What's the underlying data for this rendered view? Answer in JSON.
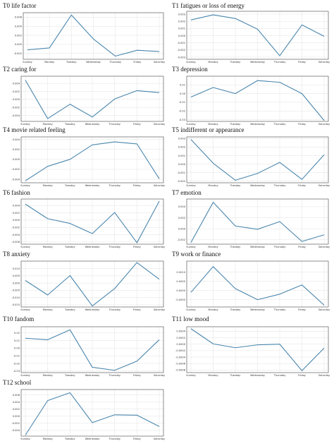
{
  "figure": {
    "line_color": "#4a86ad",
    "grid": true
  },
  "chart_data": [
    {
      "type": "line",
      "title": "T0 life factor",
      "categories": [
        "Sunday",
        "Monday",
        "Tuesday",
        "Wednesday",
        "Thursday",
        "Friday",
        "Saturday"
      ],
      "yticks": [
        "0.006",
        "0.004",
        "0.002",
        "0.000",
        "-0.002"
      ],
      "ylim": [
        -0.0033,
        0.007
      ],
      "series": [
        {
          "values": [
            -0.0012,
            -0.0008,
            0.0065,
            0.0012,
            -0.0026,
            -0.0013,
            -0.0016
          ]
        }
      ]
    },
    {
      "type": "line",
      "title": "T1 fatigues or loss of energy",
      "categories": [
        "Sunday",
        "Monday",
        "Tuesday",
        "Wednesday",
        "Thursday",
        "Friday",
        "Saturday"
      ],
      "yticks": [
        "0.003",
        "0.002",
        "0.001",
        "0.000",
        "-0.001",
        "-0.002",
        "-0.003"
      ],
      "ylim": [
        -0.0033,
        0.0034
      ],
      "series": [
        {
          "values": [
            0.0022,
            0.0029,
            0.0024,
            0.0009,
            -0.0028,
            0.0015,
            -0.0001
          ]
        }
      ]
    },
    {
      "type": "line",
      "title": "T2 caring for",
      "categories": [
        "Sunday",
        "Monday",
        "Tuesday",
        "Wednesday",
        "Thursday",
        "Friday",
        "Saturday"
      ],
      "yticks": [
        "0.004",
        "0.002",
        "0.000",
        "-0.002",
        "-0.004"
      ],
      "ylim": [
        -0.0055,
        0.0058
      ],
      "series": [
        {
          "values": [
            0.0048,
            -0.0048,
            -0.0012,
            -0.0044,
            0.0001,
            0.0022,
            0.0017
          ]
        }
      ]
    },
    {
      "type": "line",
      "title": "T3 depression",
      "categories": [
        "Sunday",
        "Monday",
        "Tuesday",
        "Wednesday",
        "Thursday",
        "Friday",
        "Saturday"
      ],
      "yticks": [
        "0.01",
        "0.00",
        "-0.01",
        "-0.02",
        "-0.03"
      ],
      "ylim": [
        -0.032,
        0.02
      ],
      "series": [
        {
          "values": [
            -0.004,
            0.007,
            0.0,
            0.015,
            0.013,
            0.0,
            -0.031
          ]
        }
      ]
    },
    {
      "type": "line",
      "title": "T4 movie related feeling",
      "categories": [
        "Sunday",
        "Monday",
        "Tuesday",
        "Wednesday",
        "Thursday",
        "Friday",
        "Saturday"
      ],
      "yticks": [
        "0.004",
        "0.002",
        "0.000",
        "-0.002",
        "-0.004"
      ],
      "ylim": [
        -0.0047,
        0.0045
      ],
      "series": [
        {
          "values": [
            -0.0043,
            -0.0014,
            0.0,
            0.0029,
            0.0035,
            0.0031,
            -0.0039
          ]
        }
      ]
    },
    {
      "type": "line",
      "title": "T5 indifferent or appearance",
      "categories": [
        "Sunday",
        "Monday",
        "Tuesday",
        "Wednesday",
        "Thursday",
        "Friday",
        "Saturday"
      ],
      "yticks": [
        "0.003",
        "0.002",
        "0.001",
        "0.000",
        "-0.001",
        "-0.002"
      ],
      "ylim": [
        -0.0022,
        0.0032
      ],
      "series": [
        {
          "values": [
            0.0029,
            0.0001,
            -0.0019,
            -0.0011,
            0.0002,
            -0.0018,
            0.0011
          ]
        }
      ]
    },
    {
      "type": "line",
      "title": "T6 fashion",
      "categories": [
        "Sunday",
        "Monday",
        "Tuesday",
        "Wednesday",
        "Thursday",
        "Friday",
        "Saturday"
      ],
      "yticks": [
        "0.004",
        "0.002",
        "0.000",
        "-0.002",
        "-0.004",
        "-0.006"
      ],
      "ylim": [
        -0.0066,
        0.0058
      ],
      "series": [
        {
          "values": [
            0.0044,
            0.0004,
            -0.0009,
            -0.0037,
            0.0021,
            -0.0062,
            0.0052
          ]
        }
      ]
    },
    {
      "type": "line",
      "title": "T7 emotion",
      "categories": [
        "Sunday",
        "Monday",
        "Tuesday",
        "Wednesday",
        "Thursday",
        "Friday",
        "Saturday"
      ],
      "yticks": [
        "0.004",
        "0.002",
        "0.000",
        "-0.002"
      ],
      "ylim": [
        -0.0028,
        0.0054
      ],
      "series": [
        {
          "values": [
            -0.0025,
            0.0048,
            0.0005,
            -0.0001,
            0.0013,
            -0.0023,
            -0.0011
          ]
        }
      ]
    },
    {
      "type": "line",
      "title": "T8 anxiety",
      "categories": [
        "Sunday",
        "Monday",
        "Tuesday",
        "Wednesday",
        "Thursday",
        "Friday",
        "Saturday"
      ],
      "yticks": [
        "0.010",
        "0.005",
        "0.000",
        "-0.005",
        "-0.010",
        "-0.015"
      ],
      "ylim": [
        -0.0165,
        0.0152
      ],
      "series": [
        {
          "values": [
            0.0018,
            -0.0082,
            0.0052,
            -0.0158,
            -0.0038,
            0.0142,
            0.0027
          ]
        }
      ]
    },
    {
      "type": "line",
      "title": "T9 work or finance",
      "categories": [
        "Sunday",
        "Monday",
        "Tuesday",
        "Wednesday",
        "Thursday",
        "Friday",
        "Saturday"
      ],
      "yticks": [
        "0.0010",
        "0.0005",
        "0.0000",
        "-0.0005"
      ],
      "ylim": [
        -0.0009,
        0.0016
      ],
      "series": [
        {
          "values": [
            -0.0001,
            0.0013,
            0.0001,
            -0.0005,
            -0.0002,
            0.0003,
            -0.0008
          ]
        }
      ]
    },
    {
      "type": "line",
      "title": "T10 fandom",
      "categories": [
        "Sunday",
        "Monday",
        "Tuesday",
        "Wednesday",
        "Thursday",
        "Friday",
        "Saturday"
      ],
      "yticks": [
        "0.02",
        "0.01",
        "0.00",
        "-0.01",
        "-0.02",
        "-0.03"
      ],
      "ylim": [
        -0.032,
        0.028
      ],
      "series": [
        {
          "values": [
            0.013,
            0.011,
            0.024,
            -0.025,
            -0.029,
            -0.017,
            0.011
          ]
        }
      ]
    },
    {
      "type": "line",
      "title": "T11 low mood",
      "categories": [
        "Sunday",
        "Monday",
        "Tuesday",
        "Wednesday",
        "Thursday",
        "Friday",
        "Saturday"
      ],
      "yticks": [
        "0.0004",
        "0.0002",
        "0.0000",
        "-0.0002",
        "-0.0004",
        "-0.0006",
        "-0.0008"
      ],
      "ylim": [
        -0.00088,
        0.00054
      ],
      "series": [
        {
          "values": [
            0.00048,
            1e-05,
            -0.00011,
            -2e-05,
            0.0,
            -0.00082,
            -0.00012
          ]
        }
      ]
    },
    {
      "type": "line",
      "title": "T12 school",
      "categories": [
        "Sunday",
        "Monday",
        "Tuesday",
        "Wednesday",
        "Thursday",
        "Friday",
        "Saturday"
      ],
      "yticks": [
        "0.006",
        "0.004",
        "0.002",
        "0.000",
        "-0.002",
        "-0.004"
      ],
      "ylim": [
        -0.0056,
        0.0075
      ],
      "series": [
        {
          "values": [
            -0.0053,
            0.0044,
            0.0066,
            -0.0018,
            0.0004,
            0.0003,
            -0.0029
          ]
        }
      ]
    }
  ]
}
